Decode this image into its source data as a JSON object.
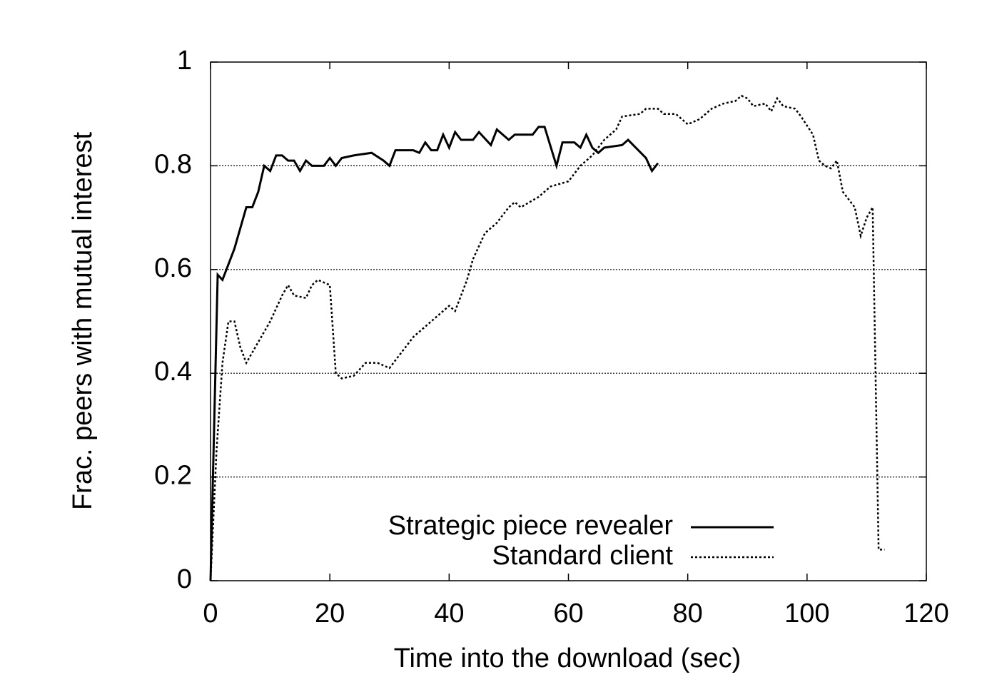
{
  "chart_data": {
    "type": "line",
    "x_label": "Time into the download (sec)",
    "y_label": "Frac. peers with mutual interest",
    "xlim": [
      0,
      120
    ],
    "xticks": [
      0,
      20,
      40,
      60,
      80,
      100,
      120
    ],
    "ylim": [
      0,
      1
    ],
    "yticks": [
      0,
      0.2,
      0.4,
      0.6,
      0.8,
      1
    ],
    "grid": true,
    "legend": "lower right",
    "series": [
      {
        "name": "Strategic piece revealer",
        "color": "#000000",
        "dash": "solid",
        "x": [
          0,
          1.2,
          2,
          4,
          6,
          7,
          8,
          9,
          10,
          11,
          12,
          13,
          14,
          15,
          16,
          17,
          19,
          20,
          21,
          22,
          24,
          27,
          29,
          30,
          31,
          34,
          35,
          36,
          37,
          38,
          39,
          40,
          41,
          42,
          44,
          45,
          47,
          48,
          50,
          51,
          54,
          55,
          56,
          58,
          59,
          61,
          62,
          63,
          64,
          65,
          66,
          69,
          70,
          73,
          74,
          75
        ],
        "values": [
          0,
          0.59,
          0.58,
          0.64,
          0.72,
          0.72,
          0.75,
          0.8,
          0.79,
          0.82,
          0.82,
          0.81,
          0.81,
          0.79,
          0.81,
          0.8,
          0.8,
          0.815,
          0.8,
          0.815,
          0.82,
          0.825,
          0.81,
          0.8,
          0.83,
          0.83,
          0.825,
          0.845,
          0.83,
          0.83,
          0.86,
          0.835,
          0.865,
          0.85,
          0.85,
          0.865,
          0.84,
          0.87,
          0.85,
          0.86,
          0.86,
          0.875,
          0.875,
          0.8,
          0.845,
          0.845,
          0.835,
          0.86,
          0.835,
          0.825,
          0.835,
          0.84,
          0.85,
          0.815,
          0.79,
          0.805
        ]
      },
      {
        "name": "Standard client",
        "color": "#000000",
        "dash": "dotted",
        "x": [
          0,
          1,
          2,
          3,
          4,
          5,
          6,
          8,
          10,
          12,
          13,
          14,
          16,
          17,
          18,
          20,
          21,
          22,
          24,
          26,
          28,
          30,
          32,
          34,
          36,
          38,
          40,
          41,
          43,
          44,
          46,
          48,
          50,
          51,
          52,
          55,
          57,
          60,
          62,
          64,
          66,
          68,
          69,
          72,
          73,
          75,
          76,
          78,
          80,
          82,
          84,
          86,
          88,
          89,
          90,
          91,
          93,
          94,
          95,
          96,
          98,
          99,
          101,
          102,
          103,
          104,
          105,
          106,
          108,
          109,
          110,
          111,
          112,
          113
        ],
        "values": [
          0,
          0.25,
          0.42,
          0.5,
          0.5,
          0.45,
          0.42,
          0.46,
          0.5,
          0.55,
          0.57,
          0.55,
          0.545,
          0.57,
          0.58,
          0.57,
          0.4,
          0.39,
          0.395,
          0.42,
          0.42,
          0.41,
          0.44,
          0.47,
          0.49,
          0.51,
          0.53,
          0.52,
          0.58,
          0.62,
          0.67,
          0.69,
          0.72,
          0.73,
          0.72,
          0.74,
          0.76,
          0.77,
          0.8,
          0.82,
          0.85,
          0.87,
          0.895,
          0.9,
          0.91,
          0.91,
          0.9,
          0.9,
          0.88,
          0.89,
          0.91,
          0.92,
          0.925,
          0.935,
          0.93,
          0.915,
          0.92,
          0.905,
          0.93,
          0.915,
          0.91,
          0.895,
          0.86,
          0.81,
          0.8,
          0.795,
          0.81,
          0.75,
          0.72,
          0.665,
          0.7,
          0.72,
          0.06,
          0.06
        ]
      }
    ]
  }
}
